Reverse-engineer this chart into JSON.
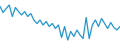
{
  "y": [
    82,
    70,
    78,
    85,
    62,
    80,
    72,
    65,
    72,
    62,
    68,
    55,
    48,
    55,
    45,
    52,
    42,
    48,
    38,
    45,
    20,
    42,
    15,
    32,
    22,
    35,
    25,
    18,
    60,
    18,
    45,
    55,
    42,
    58,
    48,
    38,
    50,
    40,
    35,
    42
  ],
  "line_color": "#2196d4",
  "linewidth": 0.9,
  "background_color": "#ffffff",
  "ylim_min": 5,
  "ylim_max": 95
}
